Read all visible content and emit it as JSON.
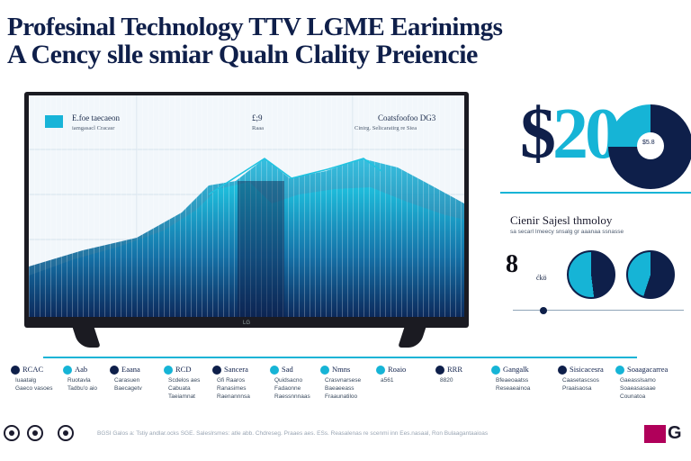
{
  "headline": {
    "line1": "Profesinal Technology TTV LGME Earinimgs",
    "line2": "A Cency slle smiar Qualn Clality Preiencie"
  },
  "screen": {
    "legend_title": "E.foe taecaeon",
    "legend_sub": "iamgasacl Cracasr",
    "mid_title": "£;9",
    "mid_sub": "Raaa",
    "right_title": "Coatsfoofoo DG3",
    "right_sub": "Cinirg. Selicaratirg re Siea",
    "brand": "LG"
  },
  "right_panel": {
    "big_number_dollar": "$",
    "big_number_digits": "20",
    "donut_label": "$5.8",
    "section_title": "Cienir Sajesl thmoloy",
    "section_sub": "sa secarl Imeecy snsalg gr aaanaa ssnasse",
    "small_stat": "8",
    "small_stat_sub": "ćkö"
  },
  "legend": [
    {
      "name": "RCAC",
      "detail": "Iuaatalg\nGaeco vasoes",
      "color": "#0e1f4a"
    },
    {
      "name": "Aab",
      "detail": "Ruotavla\nTadbu'o aio",
      "color": "#16b4d6"
    },
    {
      "name": "Eaana",
      "detail": "Carasuen\nBaecagetv",
      "color": "#0e1f4a"
    },
    {
      "name": "RCD",
      "detail": "Scdelos aes\nCabuata\nTaeiamnat",
      "color": "#16b4d6"
    },
    {
      "name": "Sancera",
      "detail": "Gfi Raaros\nRanasimes\nRaenannnsa",
      "color": "#0e1f4a"
    },
    {
      "name": "Sad",
      "detail": "Quidsacno\nFadaonne\nRaessnnnaas",
      "color": "#16b4d6"
    },
    {
      "name": "Nmns",
      "detail": "Crasvnarsese\nBaeaeeass\nFraaunatiloo",
      "color": "#16b4d6"
    },
    {
      "name": "Roaio",
      "detail": "a561",
      "color": "#16b4d6"
    },
    {
      "name": "RRR",
      "detail": "8820",
      "color": "#0e1f4a"
    },
    {
      "name": "Gangalk",
      "detail": "Bfeaeoaatss\nReseaeainoa",
      "color": "#16b4d6"
    },
    {
      "name": "Sisicacesra",
      "detail": "Caasetascsos\nPraaisaosa",
      "color": "#0e1f4a"
    },
    {
      "name": "Soaagacarrea",
      "detail": "Gaeasslsamo\nSoaeasasaae\nCounatoa",
      "color": "#16b4d6"
    }
  ],
  "footer": {
    "text": "BGSI Galos a: Tstiy andlar.ocks  SGE. Saleslrsmes: atle abb.  Chdreseg. Praaes aes. ESs.  Reasalenas re scenmi inn Ees.nasaal, Ron Bulaagantaaioas",
    "brand_letters": "G"
  },
  "colors": {
    "navy": "#0e1f4a",
    "cyan": "#16b4d6",
    "brand_magenta": "#b0005a"
  }
}
